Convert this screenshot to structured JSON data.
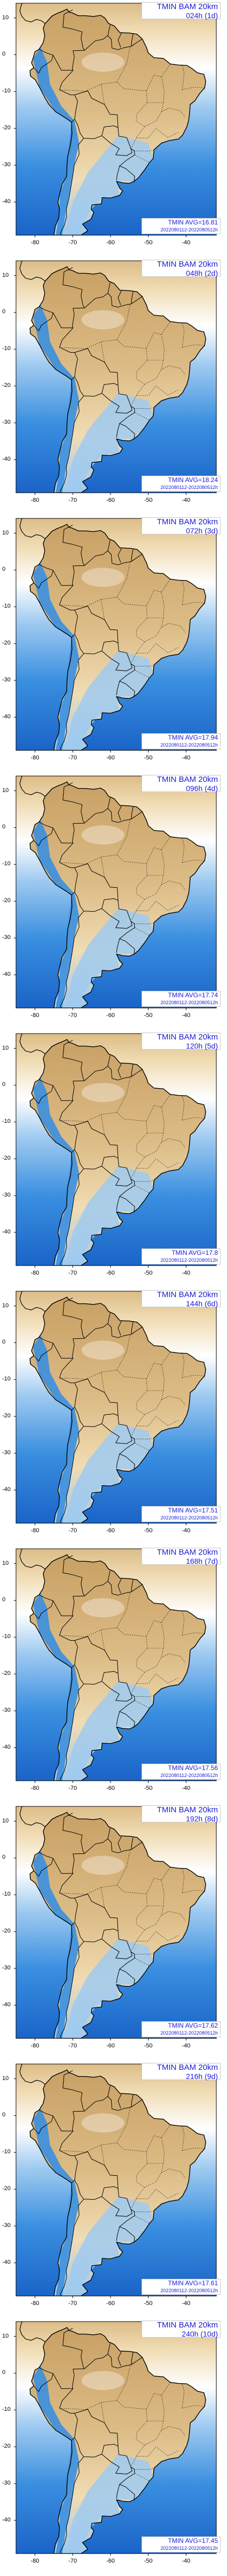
{
  "map": {
    "model": "TMIN BAM 20km",
    "variable": "TMIN",
    "x_ticks": [
      "-80",
      "-70",
      "-60",
      "-50",
      "-40"
    ],
    "y_ticks": [
      "10",
      "0",
      "-10",
      "-20",
      "-30",
      "-40"
    ],
    "colors": {
      "cold_dark": "#1a64c8",
      "cold_mid": "#3a8fe0",
      "cold_light": "#9fcaf0",
      "neutral": "#ffffff",
      "warm_light": "#f0dcb4",
      "warm_mid": "#dcbc86",
      "warm_dark": "#c8a064",
      "text_blue": "#1c1cd6"
    }
  },
  "panels": [
    {
      "title": "TMIN BAM  20km",
      "forecast": "024h (1d)",
      "avg": "TMIN AVG=16.81",
      "range": "2022080112-2022080512h"
    },
    {
      "title": "TMIN BAM  20km",
      "forecast": "048h (2d)",
      "avg": "TMIN AVG=18.24",
      "range": "2022080112-2022080512h"
    },
    {
      "title": "TMIN BAM  20km",
      "forecast": "072h (3d)",
      "avg": "TMIN AVG=17.94",
      "range": "2022080112-2022080512h"
    },
    {
      "title": "TMIN BAM  20km",
      "forecast": "096h (4d)",
      "avg": "TMIN AVG=17.74",
      "range": "2022080112-2022080512h"
    },
    {
      "title": "TMIN BAM  20km",
      "forecast": "120h (5d)",
      "avg": "TMIN AVG=17.8",
      "range": "2022080112-2022080512h"
    },
    {
      "title": "TMIN BAM  20km",
      "forecast": "144h (6d)",
      "avg": "TMIN AVG=17.51",
      "range": "2022080112-2022080512h"
    },
    {
      "title": "TMIN BAM  20km",
      "forecast": "168h (7d)",
      "avg": "TMIN AVG=17.56",
      "range": "2022080112-2022080512h"
    },
    {
      "title": "TMIN BAM  20km",
      "forecast": "192h (8d)",
      "avg": "TMIN AVG=17.62",
      "range": "2022080112-2022080512h"
    },
    {
      "title": "TMIN BAM  20km",
      "forecast": "216h (9d)",
      "avg": "TMIN AVG=17.61",
      "range": "2022080112-2022080512h"
    },
    {
      "title": "TMIN BAM  20km",
      "forecast": "240h (10d)",
      "avg": "TMIN AVG=17.45",
      "range": "2022080112-2022080512h"
    }
  ]
}
